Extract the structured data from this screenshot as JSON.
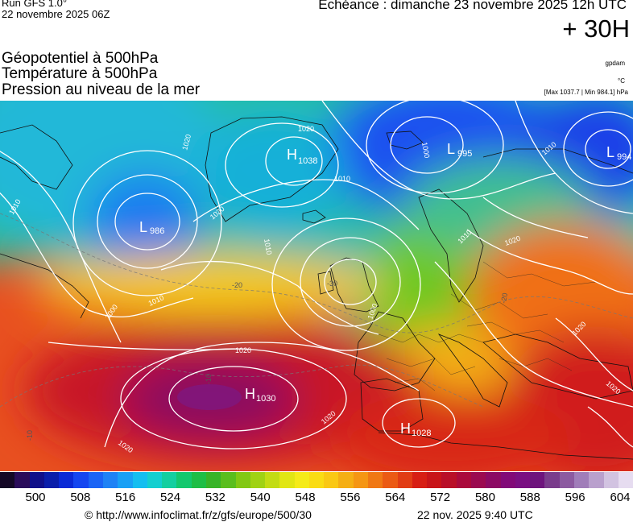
{
  "header": {
    "run": "Run GFS 1.0°",
    "run_date": "22 novembre 2025 06Z",
    "echeance": "Echéance : dimanche 23 novembre 2025 12h UTC",
    "hour": "+ 30H"
  },
  "params": [
    "Géopotentiel à 500hPa",
    "Température à 500hPa",
    "Pression au niveau de la mer"
  ],
  "side": {
    "source": "gpdam",
    "unit": "°C",
    "minmax": "[Max 1037.7 | Min 984.1] hPa"
  },
  "systems": [
    {
      "type": "L",
      "value": "986"
    },
    {
      "type": "H",
      "value": "1038"
    },
    {
      "type": "L",
      "value": "995"
    },
    {
      "type": "L",
      "value": "994"
    },
    {
      "type": "H",
      "value": "1030"
    },
    {
      "type": "H",
      "value": "1028"
    }
  ],
  "isobar_labels": [
    "1010",
    "1020",
    "1000",
    "1010",
    "1020",
    "1010",
    "1020",
    "1010",
    "1000",
    "1010",
    "1020",
    "1020",
    "1010",
    "1020",
    "1020",
    "1020",
    "1020",
    "1000"
  ],
  "temp_labels": [
    "-20",
    "-10",
    "-20",
    "-10",
    "-30"
  ],
  "scale": {
    "colors": [
      "#140826",
      "#2a0c5a",
      "#10108a",
      "#0a1eaa",
      "#0a2ad6",
      "#1446f0",
      "#1a64f5",
      "#1e82f5",
      "#19a0f5",
      "#14bef0",
      "#14cfd0",
      "#14cfa0",
      "#14c86e",
      "#1ebe46",
      "#37b428",
      "#5abe1e",
      "#82c814",
      "#a0d214",
      "#c3dc14",
      "#e1e614",
      "#f5eb19",
      "#fadc14",
      "#fac814",
      "#f5af14",
      "#f59614",
      "#f07814",
      "#eb5a14",
      "#e13c14",
      "#d71e14",
      "#c81419",
      "#b90f28",
      "#aa0a3c",
      "#9b0a50",
      "#8c0a64",
      "#820a78",
      "#7a0f82",
      "#6e147d",
      "#7a3c8c",
      "#8c5aa0",
      "#a07db9",
      "#b9a0cd",
      "#d2c3e1",
      "#e6dcf0"
    ],
    "labels": [
      "500",
      "508",
      "516",
      "524",
      "532",
      "540",
      "548",
      "556",
      "564",
      "572",
      "580",
      "588",
      "596",
      "604"
    ]
  },
  "footer": {
    "url": "© http://www.infoclimat.fr/z/gfs/europe/500/30",
    "time": "22 nov. 2025  9:40 UTC"
  }
}
